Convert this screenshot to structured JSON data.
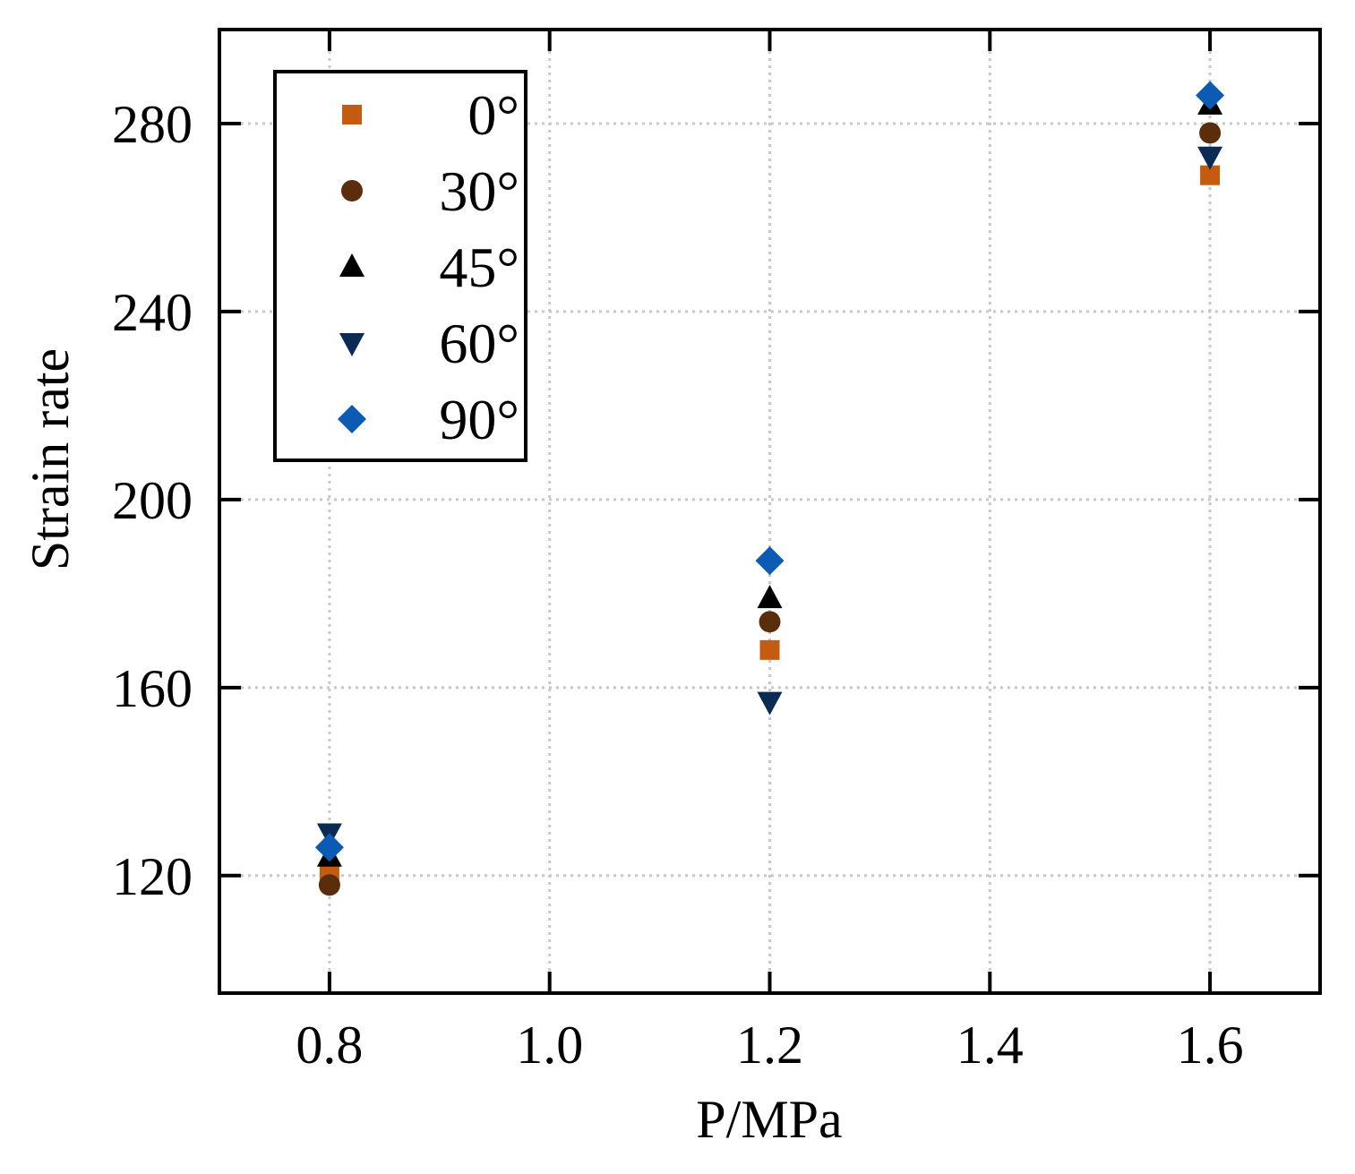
{
  "chart_data": {
    "type": "scatter",
    "title": "",
    "xlabel": "P/MPa",
    "ylabel": "Strain rate",
    "xlim": [
      0.7,
      1.7
    ],
    "ylim": [
      95,
      300
    ],
    "x_ticks": [
      0.8,
      1.0,
      1.2,
      1.4,
      1.6
    ],
    "x_tick_labels": [
      "0.8",
      "1.0",
      "1.2",
      "1.4",
      "1.6"
    ],
    "y_ticks": [
      120,
      160,
      200,
      240,
      280
    ],
    "y_tick_labels": [
      "120",
      "160",
      "200",
      "240",
      "280"
    ],
    "grid": true,
    "legend_position": "top-left",
    "series": [
      {
        "name": "0°",
        "marker": "square",
        "color": "#c55a11",
        "x": [
          0.8,
          1.2,
          1.6
        ],
        "values": [
          120,
          168,
          269
        ]
      },
      {
        "name": "30°",
        "marker": "circle",
        "color": "#5a2d0c",
        "x": [
          0.8,
          1.2,
          1.6
        ],
        "values": [
          118,
          174,
          278
        ]
      },
      {
        "name": "45°",
        "marker": "triangle-up",
        "color": "#000000",
        "x": [
          0.8,
          1.2,
          1.6
        ],
        "values": [
          124,
          179,
          284
        ]
      },
      {
        "name": "60°",
        "marker": "triangle-down",
        "color": "#0b2a54",
        "x": [
          0.8,
          1.2,
          1.6
        ],
        "values": [
          129,
          157,
          273
        ]
      },
      {
        "name": "90°",
        "marker": "diamond",
        "color": "#0b5bb5",
        "x": [
          0.8,
          1.2,
          1.6
        ],
        "values": [
          126,
          187,
          286
        ]
      }
    ]
  }
}
